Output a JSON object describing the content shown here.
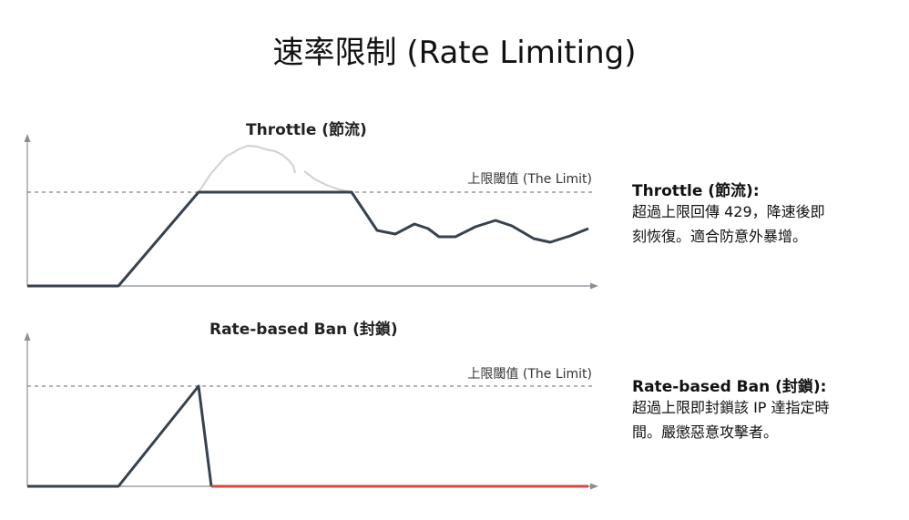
{
  "page": {
    "title": "速率限制 (Rate Limiting)"
  },
  "throttle": {
    "chart_title": "Throttle (節流)",
    "limit_label": "上限閾值 (The Limit)",
    "side_title": "Throttle (節流):",
    "side_line1": "超過上限回傳 429，降速後即",
    "side_line2": "刻恢復。適合防意外暴增。"
  },
  "ban": {
    "chart_title": "Rate-based Ban (封鎖)",
    "limit_label": "上限閾值 (The Limit)",
    "side_title": "Rate-based Ban (封鎖):",
    "side_line1": "超過上限即封鎖該 IP 達指定時",
    "side_line2": "間。嚴懲惡意攻擊者。"
  },
  "colors": {
    "line": "#37424d",
    "ghost": "#d4d4d4",
    "banned": "#e0443a",
    "axis": "#8a8f96",
    "limit": "#666666"
  }
}
